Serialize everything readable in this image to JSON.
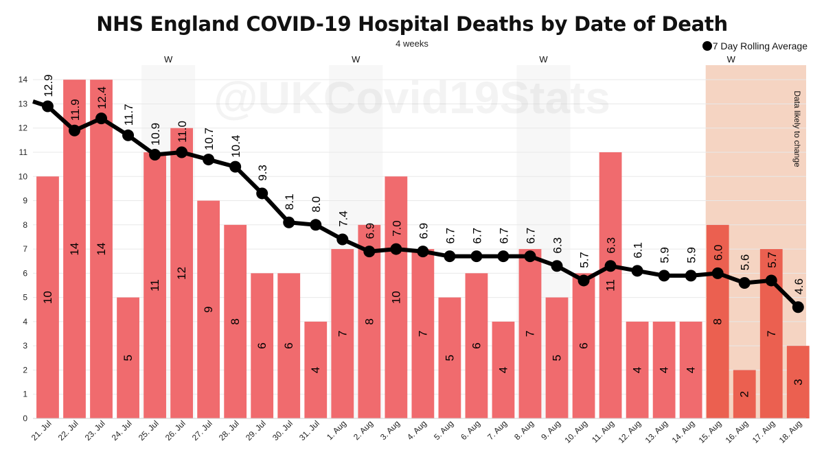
{
  "chart_data": {
    "type": "bar",
    "title": "NHS England COVID-19 Hospital Deaths by Date of Death",
    "subtitle": "4 weeks",
    "watermark": "@UKCovid19Stats",
    "legend_label": "7 Day Rolling Average",
    "annotation": "Data likely to change",
    "weekend_marker": "W",
    "ylim": [
      0,
      14.6
    ],
    "yticks": [
      0,
      1,
      2,
      3,
      4,
      5,
      6,
      7,
      8,
      9,
      10,
      11,
      12,
      13,
      14
    ],
    "categories": [
      "21. Jul",
      "22. Jul",
      "23. Jul",
      "24. Jul",
      "25. Jul",
      "26. Jul",
      "27. Jul",
      "28. Jul",
      "29. Jul",
      "30. Jul",
      "31. Jul",
      "1. Aug",
      "2. Aug",
      "3. Aug",
      "4. Aug",
      "5. Aug",
      "6. Aug",
      "7. Aug",
      "8. Aug",
      "9. Aug",
      "10. Aug",
      "11. Aug",
      "12. Aug",
      "13. Aug",
      "14. Aug",
      "15. Aug",
      "16. Aug",
      "17. Aug",
      "18. Aug"
    ],
    "series": [
      {
        "name": "Deaths",
        "type": "bar",
        "values": [
          10,
          14,
          14,
          5,
          11,
          12,
          9,
          8,
          6,
          6,
          4,
          7,
          8,
          10,
          7,
          5,
          6,
          4,
          7,
          5,
          6,
          11,
          4,
          4,
          4,
          8,
          2,
          7,
          3
        ]
      },
      {
        "name": "7 Day Rolling Average",
        "type": "line",
        "values": [
          12.9,
          11.9,
          12.4,
          11.7,
          10.9,
          11.0,
          10.7,
          10.4,
          9.3,
          8.1,
          8.0,
          7.4,
          6.9,
          7.0,
          6.9,
          6.7,
          6.7,
          6.7,
          6.7,
          6.3,
          5.7,
          6.3,
          6.1,
          5.9,
          5.9,
          6.0,
          5.6,
          5.7,
          4.6
        ],
        "labels": [
          "12.9",
          "11.9",
          "12.4",
          "11.7",
          "10.9",
          "11.0",
          "10.7",
          "10.4",
          "9.3",
          "8.1",
          "8.0",
          "7.4",
          "6.9",
          "7.0",
          "6.9",
          "6.7",
          "6.7",
          "6.7",
          "6.7",
          "6.3",
          "5.7",
          "6.3",
          "6.1",
          "5.9",
          "5.9",
          "6.0",
          "5.6",
          "5.7",
          "4.6"
        ],
        "leading_value": 13.1
      }
    ],
    "weekend_indices": [
      [
        4,
        5
      ],
      [
        11,
        12
      ],
      [
        18,
        19
      ],
      [
        25,
        26
      ]
    ],
    "provisional_indices": [
      25,
      26,
      27,
      28
    ],
    "colors": {
      "bar": "#f06b6e",
      "bar_provisional": "#eb6050",
      "line": "#000000",
      "weekend_band": "#ededed",
      "provisional_band": "#f2c5ad",
      "grid": "#e8e8e8"
    }
  }
}
